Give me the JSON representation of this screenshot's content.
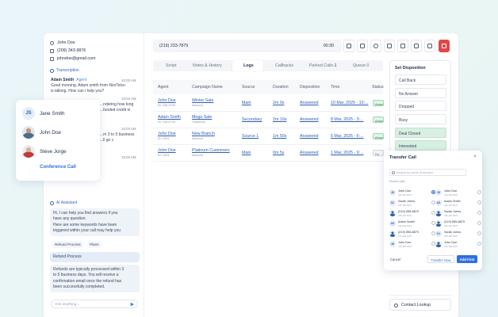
{
  "contact": {
    "name": "John Doe",
    "phone": "(209) 343-9876",
    "email": "johndoe@gmail.com"
  },
  "transcription": {
    "title": "Transcription",
    "messages": [
      {
        "speaker": "Adam Smith",
        "tag": "Agent",
        "time": "10:03 AM",
        "lines": [
          "Good morning, Adam smith from NexTelco",
          "is talking. How can i help you?"
        ]
      },
      {
        "speaker": "",
        "tag": "",
        "time": "10:03 AM",
        "lines": [
          "...me ...ilable",
          ""
        ]
      },
      {
        "speaker": "",
        "tag": "",
        "time": "10:03 AM",
        "lines": [
          "...ndering how long",
          "...funded credit in"
        ]
      },
      {
        "speaker": "",
        "tag": "",
        "time": "10:03 AM",
        "lines": [
          "...m 3 to 5 business",
          "...ll go c"
        ]
      },
      {
        "speaker": "",
        "tag": "",
        "time": "10:03 AM",
        "lines": []
      }
    ]
  },
  "conference": {
    "participants": [
      {
        "name": "Jane Smith",
        "initials": "JS"
      },
      {
        "name": "John Doe",
        "initials": ""
      },
      {
        "name": "Steve Jorge",
        "initials": ""
      }
    ],
    "button": "Conference Call"
  },
  "ai_assistant": {
    "title": "AI Assistant",
    "intro": [
      "Hi, I can help you find answers if you",
      "have any question.",
      "Here are some keywords have been",
      "triggered within your call may help you"
    ],
    "chips": [
      "Refund Process",
      "Plans"
    ],
    "selected_topic": "Refund Process",
    "answer": [
      "Refunds are typically processed within 3",
      "to 5 business days. You will receive a",
      "confirmation email once the refund has",
      "been successfully completed."
    ],
    "input_placeholder": "Ask anything..."
  },
  "call_bar": {
    "number": "(219) 233-7879",
    "duration": "00:30"
  },
  "tabs": [
    {
      "label": "Script",
      "active": false
    },
    {
      "label": "Notes & History",
      "active": false
    },
    {
      "label": "Logs",
      "active": true
    },
    {
      "label": "Callbacks",
      "active": false
    },
    {
      "label": "Parked Calls",
      "count": "1",
      "active": false
    },
    {
      "label": "Queue",
      "count": "0",
      "active": false
    }
  ],
  "logs": {
    "columns": [
      "Agent",
      "Campaign Name",
      "Source",
      "Duration",
      "Disposition",
      "Time",
      "Status"
    ],
    "rows": [
      {
        "agent": "John Doe",
        "agent_id": "ID: 246-4709",
        "campaign": "Winter Sale",
        "campaign_sub": "Inbound",
        "source": "Main",
        "duration": "2m 0s",
        "disposition": "Answered",
        "time": "10 Mar, 2025 - 10:...",
        "status": "Answered",
        "status_kind": "ans"
      },
      {
        "agent": "Adam Smith",
        "agent_id": "ID: 246-4709",
        "campaign": "Mega Sale",
        "campaign_sub": "Outbound",
        "source": "Secondary",
        "duration": "2m 10s",
        "disposition": "Answered",
        "time": "8 Mar, 2025 - 3:...",
        "status": "Answered",
        "status_kind": "ans"
      },
      {
        "agent": "John Doe",
        "agent_id": "ID: 2204",
        "campaign": "New Branch",
        "campaign_sub": "Inbound",
        "source": "Source 1",
        "duration": "1m 50s",
        "disposition": "Answered",
        "time": "5 Mar, 2025 - 6:...",
        "status": "Answered",
        "status_kind": "ans"
      },
      {
        "agent": "John Doe",
        "agent_id": "ID: 2204",
        "campaign": "Platinum Customers",
        "campaign_sub": "Inbound",
        "source": "Main",
        "duration": "0m 5s",
        "disposition": "Answered",
        "time": "1 Mar, 2025 - 9:...",
        "status": "No Answer",
        "status_kind": "no"
      }
    ]
  },
  "disposition": {
    "title": "Set Disposition",
    "options": [
      {
        "label": "Call Back",
        "selected": false
      },
      {
        "label": "No Answer",
        "selected": false
      },
      {
        "label": "Dropped",
        "selected": false
      },
      {
        "label": "Busy",
        "selected": false
      },
      {
        "label": "Deal Closed",
        "selected": true
      },
      {
        "label": "Interested",
        "selected": true
      }
    ]
  },
  "transfer": {
    "title": "Transfer Call",
    "search_placeholder": "Search by name or number",
    "recent_label": "Recent calls",
    "left": [
      {
        "name": "John Doe",
        "sub": "248 490 8376",
        "initials": "JD",
        "person": false,
        "selected": true
      },
      {
        "name": "Sarah Johns",
        "sub": "248 490 8376",
        "initials": "SJ",
        "person": false,
        "selected": false
      },
      {
        "name": "(219) 555-8879",
        "sub": "248 490 8376",
        "initials": "",
        "person": true,
        "selected": false
      },
      {
        "name": "Adam Smith",
        "sub": "248 490 8376",
        "initials": "AS",
        "person": false,
        "selected": false
      },
      {
        "name": "(219) 555-8879",
        "sub": "248 490 8376",
        "initials": "",
        "person": true,
        "selected": false
      },
      {
        "name": "John Doe",
        "sub": "248 490 8376",
        "initials": "JD",
        "person": false,
        "selected": false
      }
    ],
    "right": [
      {
        "name": "John Doe",
        "sub": "248 490 8376",
        "initials": "JD",
        "person": false,
        "selected": false
      },
      {
        "name": "Adam Smith",
        "sub": "248 490 8376",
        "initials": "AS",
        "person": false,
        "selected": false
      },
      {
        "name": "Sarah Johns",
        "sub": "248 490 8376",
        "initials": "",
        "person": true,
        "selected": false
      },
      {
        "name": "(219) 555-8879",
        "sub": "248 490 8376",
        "initials": "",
        "person": true,
        "selected": false
      },
      {
        "name": "Sarah Johns",
        "sub": "248 490 8376",
        "initials": "SJ",
        "person": false,
        "selected": false
      },
      {
        "name": "John Doe",
        "sub": "248 490 8376",
        "initials": "",
        "person": true,
        "selected": false
      }
    ],
    "cancel": "Cancel",
    "transfer_now": "Transfer Now",
    "add_first": "Add First"
  },
  "contact_lookup": "Contact Lookup",
  "colors": {
    "accent": "#2f6fe0",
    "danger": "#e04848",
    "answered": "#238249",
    "selected_disposition": "#d7f0e2"
  }
}
